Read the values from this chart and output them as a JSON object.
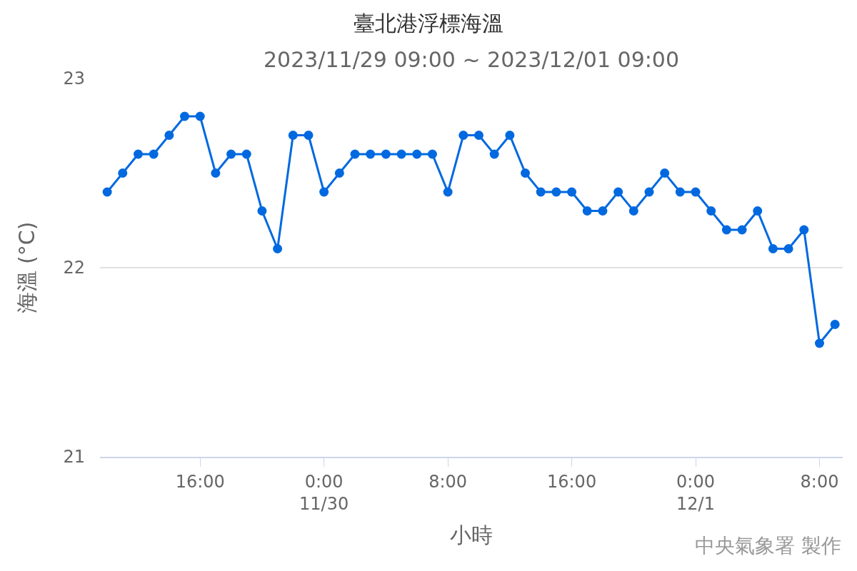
{
  "chart_data": {
    "type": "line",
    "title": "臺北港浮標海溫",
    "subtitle": "2023/11/29 09:00 ~ 2023/12/01 09:00",
    "xlabel": "小時",
    "ylabel": "海溫 (°C)",
    "x": [
      "--11-29T10:00",
      "--11-29T11:00",
      "--11-29T12:00",
      "--11-29T13:00",
      "--11-29T14:00",
      "--11-29T15:00",
      "--11-29T16:00",
      "--11-29T17:00",
      "--11-29T18:00",
      "--11-29T19:00",
      "--11-29T20:00",
      "--11-29T21:00",
      "--11-29T22:00",
      "--11-29T23:00",
      "--11-30T00:00",
      "--11-30T01:00",
      "--11-30T02:00",
      "--11-30T03:00",
      "--11-30T04:00",
      "--11-30T05:00",
      "--11-30T06:00",
      "--11-30T07:00",
      "--11-30T08:00",
      "--11-30T09:00",
      "--11-30T10:00",
      "--11-30T11:00",
      "--11-30T12:00",
      "--11-30T13:00",
      "--11-30T14:00",
      "--11-30T15:00",
      "--11-30T16:00",
      "--11-30T17:00",
      "--11-30T18:00",
      "--11-30T19:00",
      "--11-30T20:00",
      "--11-30T21:00",
      "--11-30T22:00",
      "--11-30T23:00",
      "--12-01T00:00",
      "--12-01T01:00",
      "--12-01T02:00",
      "--12-01T03:00",
      "--12-01T04:00",
      "--12-01T05:00",
      "--12-01T06:00",
      "--12-01T07:00",
      "--12-01T08:00",
      "--12-01T09:00"
    ],
    "series": [
      {
        "color": "#0069e0",
        "values": [
          22.4,
          22.5,
          22.6,
          22.6,
          22.7,
          22.8,
          22.8,
          22.5,
          22.6,
          22.6,
          22.3,
          22.1,
          22.7,
          22.7,
          22.4,
          22.5,
          22.6,
          22.6,
          22.6,
          22.6,
          22.6,
          22.6,
          22.4,
          22.7,
          22.7,
          22.6,
          22.7,
          22.5,
          22.4,
          22.4,
          22.4,
          22.3,
          22.3,
          22.4,
          22.3,
          22.4,
          22.5,
          22.4,
          22.4,
          22.3,
          22.2,
          22.2,
          22.3,
          22.1,
          22.1,
          22.2,
          21.6,
          21.7
        ]
      }
    ],
    "xlim": [
      "--11-29T09:32",
      "--12-01T09:30"
    ],
    "xticks": [
      {
        "value": "--11-29T16:00",
        "label": "16:00"
      },
      {
        "value": "--11-30T00:00",
        "label": "0:00\n11/30"
      },
      {
        "value": "--11-30T08:00",
        "label": "8:00"
      },
      {
        "value": "--11-30T16:00",
        "label": "16:00"
      },
      {
        "value": "--12-01T00:00",
        "label": "0:00\n12/1"
      },
      {
        "value": "--12-01T08:00",
        "label": "8:00"
      }
    ],
    "ylim": [
      21,
      23
    ],
    "yticks": [
      21,
      22,
      23
    ],
    "grid": "y",
    "marker": "circle",
    "line_style": "solid",
    "annotations": [
      "中央氣象署 製作"
    ]
  }
}
